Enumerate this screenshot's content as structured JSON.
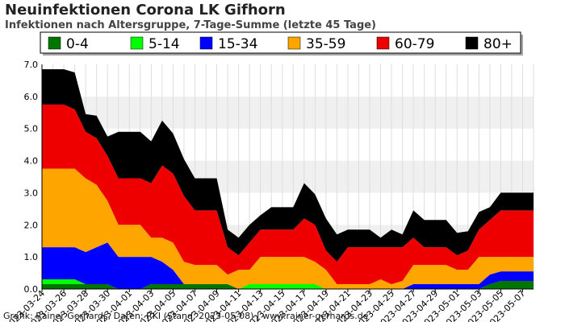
{
  "header": {
    "title": "Neuinfektionen Corona LK Gifhorn",
    "subtitle": "Infektionen nach Altersgruppe, 7-Tage-Summe (letzte 45 Tage)"
  },
  "footer": {
    "credit": "Grafik: Rainer Gerhards, Daten: RKI (Stand: 2023-05-08) | www.rainer-gerhards.de"
  },
  "chart_data": {
    "type": "area",
    "stacked": true,
    "title": "Neuinfektionen Corona LK Gifhorn",
    "subtitle": "Infektionen nach Altersgruppe, 7-Tage-Summe (letzte 45 Tage)",
    "xlabel": "",
    "ylabel": "",
    "ylim": [
      0,
      7
    ],
    "yticks": [
      "0.0",
      "1.0",
      "2.0",
      "3.0",
      "4.0",
      "5.0",
      "6.0",
      "7.0"
    ],
    "grid": "alternating horizontal bands, vertical gridlines",
    "legend_position": "top",
    "x": [
      "2023-03-24",
      "2023-03-25",
      "2023-03-26",
      "2023-03-27",
      "2023-03-28",
      "2023-03-29",
      "2023-03-30",
      "2023-03-31",
      "2023-04-01",
      "2023-04-02",
      "2023-04-03",
      "2023-04-04",
      "2023-04-05",
      "2023-04-06",
      "2023-04-07",
      "2023-04-08",
      "2023-04-09",
      "2023-04-10",
      "2023-04-11",
      "2023-04-12",
      "2023-04-13",
      "2023-04-14",
      "2023-04-15",
      "2023-04-16",
      "2023-04-17",
      "2023-04-18",
      "2023-04-19",
      "2023-04-20",
      "2023-04-21",
      "2023-04-22",
      "2023-04-23",
      "2023-04-24",
      "2023-04-25",
      "2023-04-26",
      "2023-04-27",
      "2023-04-28",
      "2023-04-29",
      "2023-04-30",
      "2023-05-01",
      "2023-05-02",
      "2023-05-03",
      "2023-05-04",
      "2023-05-05",
      "2023-05-06",
      "2023-05-07",
      "2023-05-08"
    ],
    "xtick_labels": [
      "2023-03-24",
      "2023-03-26",
      "2023-03-28",
      "2023-03-30",
      "2023-04-01",
      "2023-04-03",
      "2023-04-05",
      "2023-04-07",
      "2023-04-09",
      "2023-04-11",
      "2023-04-13",
      "2023-04-15",
      "2023-04-17",
      "2023-04-19",
      "2023-04-21",
      "2023-04-23",
      "2023-04-25",
      "2023-04-27",
      "2023-04-29",
      "2023-05-01",
      "2023-05-03",
      "2023-05-05",
      "2023-05-07"
    ],
    "series": [
      {
        "name": "0-4",
        "color": "#007500",
        "values": [
          0.15,
          0.15,
          0.15,
          0.15,
          0.15,
          0.15,
          0.15,
          0.0,
          0.0,
          0.0,
          0.15,
          0.15,
          0.15,
          0.15,
          0.15,
          0.15,
          0.15,
          0.15,
          0.0,
          0.0,
          0.0,
          0.0,
          0.0,
          0.0,
          0.0,
          0.0,
          0.0,
          0.0,
          0.0,
          0.0,
          0.0,
          0.0,
          0.0,
          0.0,
          0.0,
          0.0,
          0.0,
          0.0,
          0.0,
          0.0,
          0.0,
          0.15,
          0.25,
          0.25,
          0.25,
          0.25
        ]
      },
      {
        "name": "5-14",
        "color": "#00ff00",
        "values": [
          0.15,
          0.15,
          0.15,
          0.15,
          0.0,
          0.0,
          0.0,
          0.0,
          0.0,
          0.0,
          0.0,
          0.0,
          0.0,
          0.0,
          0.0,
          0.0,
          0.0,
          0.0,
          0.0,
          0.15,
          0.15,
          0.15,
          0.15,
          0.15,
          0.15,
          0.15,
          0.0,
          0.0,
          0.0,
          0.0,
          0.0,
          0.0,
          0.0,
          0.0,
          0.0,
          0.0,
          0.0,
          0.0,
          0.0,
          0.0,
          0.0,
          0.0,
          0.0,
          0.0,
          0.0,
          0.0
        ]
      },
      {
        "name": "15-34",
        "color": "#0000ff",
        "values": [
          1.0,
          1.0,
          1.0,
          1.0,
          1.0,
          1.15,
          1.3,
          1.0,
          1.0,
          1.0,
          0.85,
          0.7,
          0.45,
          0.0,
          0.0,
          0.0,
          0.0,
          0.0,
          0.0,
          0.0,
          0.0,
          0.0,
          0.0,
          0.0,
          0.0,
          0.0,
          0.0,
          0.0,
          0.0,
          0.0,
          0.0,
          0.0,
          0.0,
          0.0,
          0.15,
          0.15,
          0.15,
          0.15,
          0.15,
          0.15,
          0.15,
          0.3,
          0.3,
          0.3,
          0.3,
          0.3
        ]
      },
      {
        "name": "35-59",
        "color": "#ffa500",
        "values": [
          2.45,
          2.45,
          2.45,
          2.45,
          2.3,
          1.95,
          1.3,
          1.0,
          1.0,
          1.0,
          0.6,
          0.75,
          0.85,
          0.7,
          0.6,
          0.6,
          0.6,
          0.3,
          0.6,
          0.45,
          0.85,
          0.85,
          0.85,
          0.85,
          0.85,
          0.7,
          0.6,
          0.15,
          0.15,
          0.15,
          0.15,
          0.3,
          0.15,
          0.25,
          0.6,
          0.6,
          0.6,
          0.6,
          0.45,
          0.45,
          0.85,
          0.55,
          0.45,
          0.45,
          0.45,
          0.45
        ]
      },
      {
        "name": "60-79",
        "color": "#ee0000",
        "values": [
          2.0,
          2.0,
          2.0,
          1.85,
          1.45,
          1.45,
          1.4,
          1.45,
          1.45,
          1.45,
          1.7,
          2.25,
          2.15,
          2.05,
          1.7,
          1.7,
          1.7,
          0.85,
          0.45,
          0.85,
          0.85,
          0.85,
          0.85,
          0.85,
          1.2,
          1.15,
          0.6,
          0.7,
          1.15,
          1.15,
          1.15,
          1.0,
          1.15,
          1.05,
          0.85,
          0.55,
          0.55,
          0.55,
          0.45,
          0.6,
          0.85,
          1.15,
          1.45,
          1.45,
          1.45,
          1.45
        ]
      },
      {
        "name": "80+",
        "color": "#000000",
        "values": [
          1.1,
          1.1,
          1.1,
          1.15,
          0.55,
          0.7,
          0.6,
          1.45,
          1.45,
          1.45,
          1.3,
          1.4,
          1.25,
          1.15,
          1.0,
          1.0,
          1.0,
          0.55,
          0.55,
          0.55,
          0.45,
          0.7,
          0.7,
          0.7,
          1.1,
          0.95,
          1.0,
          0.85,
          0.55,
          0.55,
          0.55,
          0.3,
          0.55,
          0.4,
          0.85,
          0.85,
          0.85,
          0.85,
          0.7,
          0.6,
          0.55,
          0.4,
          0.55,
          0.55,
          0.55,
          0.55
        ]
      }
    ]
  }
}
